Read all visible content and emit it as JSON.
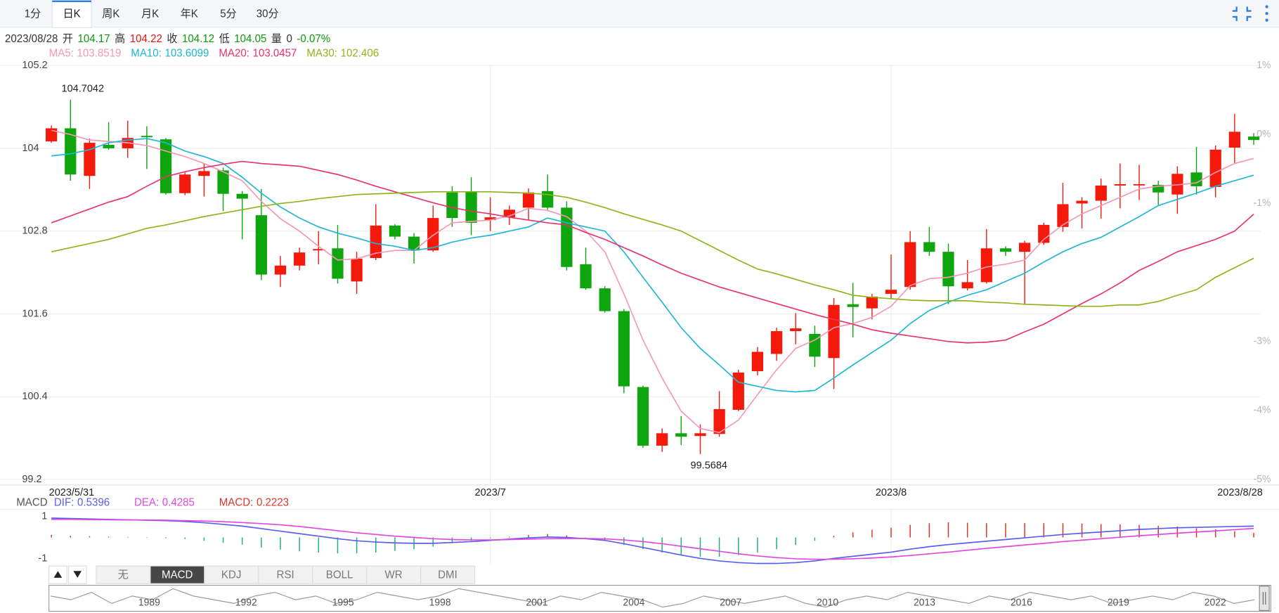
{
  "toolbar": {
    "tabs": [
      "1分",
      "日K",
      "周K",
      "月K",
      "年K",
      "5分",
      "30分"
    ],
    "active": 1
  },
  "info": {
    "date": "2023/08/28",
    "open_label": "开",
    "high_label": "高",
    "close_label": "收",
    "low_label": "低",
    "volume_label": "量",
    "volume": 0,
    "change": "-0.07%"
  },
  "chart_data": [
    {
      "type": "candlestick",
      "categories": [
        "2023/5/31",
        null,
        null,
        null,
        null,
        null,
        null,
        null,
        null,
        null,
        null,
        null,
        null,
        null,
        null,
        null,
        null,
        null,
        null,
        null,
        null,
        null,
        null,
        "2023/7",
        null,
        null,
        null,
        null,
        null,
        null,
        null,
        null,
        null,
        null,
        null,
        null,
        null,
        null,
        null,
        null,
        null,
        null,
        null,
        null,
        "2023/8",
        null,
        null,
        null,
        null,
        null,
        null,
        null,
        null,
        null,
        null,
        null,
        null,
        null,
        null,
        null,
        null,
        null,
        null,
        "2023/8/28"
      ],
      "ohlc": [
        [
          104.1,
          104.33,
          104.08,
          104.29
        ],
        [
          104.29,
          104.7042,
          103.53,
          103.62
        ],
        [
          103.6,
          104.14,
          103.41,
          104.08
        ],
        [
          104.05,
          104.38,
          103.98,
          104.0
        ],
        [
          104.0,
          104.4,
          103.86,
          104.15
        ],
        [
          104.18,
          104.32,
          103.7,
          104.16
        ],
        [
          104.13,
          104.15,
          103.33,
          103.35
        ],
        [
          103.35,
          103.65,
          103.32,
          103.62
        ],
        [
          103.6,
          103.78,
          103.3,
          103.67
        ],
        [
          103.68,
          103.72,
          103.09,
          103.34
        ],
        [
          103.34,
          103.38,
          102.68,
          103.27
        ],
        [
          103.03,
          103.41,
          102.09,
          102.17
        ],
        [
          102.17,
          102.44,
          101.99,
          102.3
        ],
        [
          102.3,
          102.56,
          102.23,
          102.49
        ],
        [
          102.52,
          102.8,
          102.32,
          102.54
        ],
        [
          102.55,
          102.89,
          102.04,
          102.11
        ],
        [
          102.07,
          102.5,
          101.89,
          102.4
        ],
        [
          102.41,
          103.19,
          102.38,
          102.88
        ],
        [
          102.88,
          102.9,
          102.68,
          102.72
        ],
        [
          102.72,
          102.77,
          102.33,
          102.52
        ],
        [
          102.52,
          103.17,
          102.5,
          102.99
        ],
        [
          103.36,
          103.45,
          102.86,
          102.99
        ],
        [
          103.37,
          103.58,
          102.74,
          102.92
        ],
        [
          102.96,
          103.29,
          102.8,
          103.0
        ],
        [
          103.0,
          103.17,
          102.89,
          103.11
        ],
        [
          103.14,
          103.42,
          102.96,
          103.36
        ],
        [
          103.38,
          103.62,
          103.11,
          103.14
        ],
        [
          103.14,
          103.23,
          102.23,
          102.28
        ],
        [
          102.32,
          102.56,
          101.95,
          101.97
        ],
        [
          101.97,
          102.0,
          101.62,
          101.64
        ],
        [
          101.64,
          101.67,
          100.45,
          100.55
        ],
        [
          100.54,
          100.56,
          99.66,
          99.69
        ],
        [
          99.69,
          99.94,
          99.6,
          99.87
        ],
        [
          99.87,
          100.12,
          99.7,
          99.82
        ],
        [
          99.83,
          100.0,
          99.5684,
          99.87
        ],
        [
          99.86,
          100.48,
          99.82,
          100.22
        ],
        [
          100.21,
          100.79,
          100.19,
          100.75
        ],
        [
          100.77,
          101.12,
          100.71,
          101.05
        ],
        [
          101.02,
          101.4,
          100.92,
          101.35
        ],
        [
          101.35,
          101.61,
          101.16,
          101.39
        ],
        [
          101.31,
          101.43,
          100.83,
          100.98
        ],
        [
          100.96,
          101.83,
          100.51,
          101.73
        ],
        [
          101.74,
          102.05,
          101.26,
          101.7
        ],
        [
          101.68,
          101.89,
          101.52,
          101.85
        ],
        [
          101.89,
          102.46,
          101.82,
          101.95
        ],
        [
          101.99,
          102.8,
          101.95,
          102.64
        ],
        [
          102.64,
          102.86,
          102.44,
          102.5
        ],
        [
          102.5,
          102.62,
          101.74,
          102.0
        ],
        [
          101.97,
          102.38,
          101.94,
          102.06
        ],
        [
          102.06,
          102.83,
          102.04,
          102.55
        ],
        [
          102.55,
          102.58,
          102.44,
          102.5
        ],
        [
          102.5,
          102.66,
          101.74,
          102.63
        ],
        [
          102.63,
          102.92,
          102.6,
          102.89
        ],
        [
          102.86,
          103.5,
          102.79,
          103.19
        ],
        [
          103.2,
          103.29,
          102.84,
          103.24
        ],
        [
          103.24,
          103.56,
          102.98,
          103.46
        ],
        [
          103.46,
          103.78,
          103.13,
          103.48
        ],
        [
          103.47,
          103.76,
          103.25,
          103.48
        ],
        [
          103.47,
          103.53,
          103.18,
          103.36
        ],
        [
          103.33,
          103.74,
          103.05,
          103.63
        ],
        [
          103.65,
          104.02,
          103.33,
          103.45
        ],
        [
          103.44,
          104.04,
          103.29,
          103.98
        ],
        [
          104.01,
          104.5,
          103.78,
          104.24
        ],
        [
          104.17,
          104.22,
          104.05,
          104.12
        ]
      ],
      "up_color": "#f5190b",
      "down_color": "#0ea50e",
      "ylim": [
        99.2,
        105.2
      ],
      "yticks": [
        99.2,
        100.4,
        101.6,
        102.8,
        104,
        105.2
      ],
      "y2lim": [
        -5,
        1
      ],
      "y2ticks": [
        {
          "value": 1,
          "label": "1%"
        },
        {
          "value": 0,
          "label": "0%"
        },
        {
          "value": -1,
          "label": "-1%"
        },
        {
          "value": -3,
          "label": "-3%"
        },
        {
          "value": -4,
          "label": "-4%"
        },
        {
          "value": -5,
          "label": "-5%"
        }
      ],
      "grid": true,
      "series": [
        {
          "name": "MA5:",
          "color": "#f597b5",
          "values": [
            104.26,
            104.2,
            104.12,
            104.1,
            104.08,
            104.04,
            103.96,
            103.88,
            103.78,
            103.66,
            103.53,
            103.23,
            102.98,
            102.8,
            102.58,
            102.38,
            102.4,
            102.48,
            102.52,
            102.52,
            102.74,
            102.92,
            102.94,
            102.96,
            103.02,
            103.13,
            103.1,
            103.01,
            102.8,
            102.5,
            101.89,
            101.22,
            100.67,
            100.19,
            99.94,
            99.88,
            100.06,
            100.43,
            100.79,
            101.1,
            101.22,
            101.4,
            101.46,
            101.55,
            101.71,
            102.01,
            102.11,
            102.13,
            102.19,
            102.28,
            102.32,
            102.38,
            102.68,
            102.89,
            103.05,
            103.17,
            103.29,
            103.41,
            103.45,
            103.47,
            103.5,
            103.65,
            103.78,
            103.8519
          ]
        },
        {
          "name": "MA10:",
          "color": "#1fb5d6",
          "values": [
            103.89,
            103.92,
            103.98,
            104.08,
            104.12,
            104.14,
            104.08,
            103.96,
            103.88,
            103.78,
            103.58,
            103.35,
            103.15,
            102.99,
            102.86,
            102.77,
            102.7,
            102.62,
            102.58,
            102.52,
            102.56,
            102.64,
            102.7,
            102.74,
            102.8,
            102.86,
            102.99,
            102.92,
            102.86,
            102.8,
            102.5,
            102.13,
            101.77,
            101.4,
            101.1,
            100.86,
            100.61,
            100.55,
            100.49,
            100.47,
            100.49,
            100.67,
            100.86,
            101.04,
            101.22,
            101.46,
            101.65,
            101.77,
            101.87,
            101.95,
            102.07,
            102.19,
            102.35,
            102.5,
            102.62,
            102.71,
            102.86,
            103.01,
            103.17,
            103.26,
            103.35,
            103.45,
            103.53,
            103.6099
          ]
        },
        {
          "name": "MA20:",
          "color": "#e8336b",
          "values": [
            102.92,
            103.02,
            103.12,
            103.22,
            103.3,
            103.45,
            103.59,
            103.66,
            103.72,
            103.77,
            103.81,
            103.78,
            103.76,
            103.74,
            103.68,
            103.62,
            103.54,
            103.45,
            103.37,
            103.29,
            103.21,
            103.14,
            103.09,
            103.05,
            103.0,
            102.96,
            102.92,
            102.89,
            102.78,
            102.68,
            102.56,
            102.44,
            102.31,
            102.19,
            102.09,
            101.99,
            101.91,
            101.83,
            101.75,
            101.67,
            101.59,
            101.52,
            101.45,
            101.37,
            101.32,
            101.28,
            101.24,
            101.2,
            101.18,
            101.19,
            101.22,
            101.34,
            101.45,
            101.6,
            101.75,
            101.89,
            102.05,
            102.23,
            102.36,
            102.5,
            102.59,
            102.68,
            102.8,
            103.0457
          ]
        },
        {
          "name": "MA30:",
          "color": "#8db51b",
          "values": [
            102.5,
            102.56,
            102.62,
            102.68,
            102.76,
            102.84,
            102.89,
            102.95,
            103.01,
            103.06,
            103.11,
            103.16,
            103.2,
            103.23,
            103.27,
            103.3,
            103.33,
            103.34,
            103.35,
            103.36,
            103.37,
            103.37,
            103.37,
            103.37,
            103.36,
            103.35,
            103.33,
            103.29,
            103.22,
            103.14,
            103.05,
            102.97,
            102.89,
            102.8,
            102.66,
            102.52,
            102.38,
            102.25,
            102.18,
            102.1,
            102.02,
            101.95,
            101.87,
            101.84,
            101.82,
            101.8,
            101.79,
            101.79,
            101.79,
            101.77,
            101.76,
            101.74,
            101.73,
            101.72,
            101.71,
            101.71,
            101.73,
            101.73,
            101.78,
            101.87,
            101.95,
            102.13,
            102.27,
            102.406
          ]
        }
      ]
    },
    {
      "type": "macd",
      "title": "MACD",
      "ylim": [
        -1.28,
        1.32
      ],
      "yticks": [
        1,
        -1
      ],
      "series": [
        {
          "name": "DIF:",
          "color": "#5a5ef0",
          "values": [
            0.92,
            0.9,
            0.88,
            0.86,
            0.84,
            0.82,
            0.8,
            0.76,
            0.7,
            0.62,
            0.54,
            0.42,
            0.3,
            0.18,
            0.06,
            -0.06,
            -0.16,
            -0.22,
            -0.26,
            -0.28,
            -0.28,
            -0.24,
            -0.2,
            -0.14,
            -0.08,
            -0.02,
            0.02,
            0.0,
            -0.06,
            -0.14,
            -0.3,
            -0.48,
            -0.66,
            -0.84,
            -1.0,
            -1.12,
            -1.2,
            -1.24,
            -1.24,
            -1.2,
            -1.12,
            -1.0,
            -0.9,
            -0.8,
            -0.7,
            -0.56,
            -0.44,
            -0.34,
            -0.26,
            -0.18,
            -0.1,
            -0.02,
            0.06,
            0.14,
            0.2,
            0.26,
            0.32,
            0.38,
            0.42,
            0.46,
            0.48,
            0.5,
            0.52,
            0.5396
          ]
        },
        {
          "name": "DEA:",
          "color": "#e048e0",
          "values": [
            0.86,
            0.86,
            0.85,
            0.84,
            0.83,
            0.83,
            0.82,
            0.8,
            0.78,
            0.75,
            0.71,
            0.66,
            0.6,
            0.52,
            0.42,
            0.32,
            0.22,
            0.14,
            0.06,
            0.0,
            -0.06,
            -0.1,
            -0.12,
            -0.12,
            -0.1,
            -0.08,
            -0.06,
            -0.05,
            -0.05,
            -0.07,
            -0.12,
            -0.2,
            -0.3,
            -0.42,
            -0.54,
            -0.66,
            -0.78,
            -0.88,
            -0.96,
            -1.02,
            -1.04,
            -1.04,
            -1.02,
            -0.98,
            -0.93,
            -0.86,
            -0.78,
            -0.7,
            -0.61,
            -0.52,
            -0.44,
            -0.36,
            -0.28,
            -0.2,
            -0.13,
            -0.06,
            0.01,
            0.08,
            0.14,
            0.2,
            0.26,
            0.31,
            0.37,
            0.4285
          ]
        },
        {
          "name": "MACD:",
          "color": "#e0352b",
          "down_color": "#23b07a",
          "kind": "bar",
          "values": [
            0.12,
            0.08,
            0.06,
            0.04,
            0.02,
            -0.02,
            -0.04,
            -0.08,
            -0.16,
            -0.26,
            -0.34,
            -0.48,
            -0.58,
            -0.66,
            -0.72,
            -0.76,
            -0.76,
            -0.72,
            -0.64,
            -0.56,
            -0.44,
            -0.28,
            -0.16,
            -0.04,
            0.04,
            0.12,
            0.16,
            0.1,
            -0.02,
            -0.14,
            -0.36,
            -0.56,
            -0.72,
            -0.84,
            -0.92,
            -0.92,
            -0.84,
            -0.72,
            -0.56,
            -0.36,
            -0.16,
            0.08,
            0.24,
            0.36,
            0.46,
            0.6,
            0.68,
            0.72,
            0.7,
            0.68,
            0.68,
            0.68,
            0.68,
            0.68,
            0.66,
            0.64,
            0.62,
            0.6,
            0.56,
            0.52,
            0.44,
            0.38,
            0.3,
            0.2223
          ]
        }
      ]
    }
  ],
  "indicators": {
    "tabs": [
      "无",
      "MACD",
      "KDJ",
      "RSI",
      "BOLL",
      "WR",
      "DMI"
    ],
    "active": 1
  },
  "navigator": {
    "years": [
      "1989",
      "1992",
      "1995",
      "1998",
      "2001",
      "2004",
      "2007",
      "2010",
      "2013",
      "2016",
      "2019",
      "2022"
    ],
    "values": [
      6,
      5,
      7,
      4,
      6,
      5,
      8,
      6,
      5,
      4,
      6,
      7,
      5,
      6,
      4,
      5,
      7,
      6,
      5,
      6,
      8,
      7,
      6,
      5,
      4,
      6,
      5,
      7,
      6,
      5,
      3,
      4,
      6,
      5,
      4,
      5,
      6,
      4,
      3,
      5,
      6,
      5,
      7,
      6,
      5,
      4,
      6,
      5,
      7,
      6,
      5,
      6,
      4,
      5,
      6,
      5,
      7,
      6,
      4,
      5
    ]
  }
}
